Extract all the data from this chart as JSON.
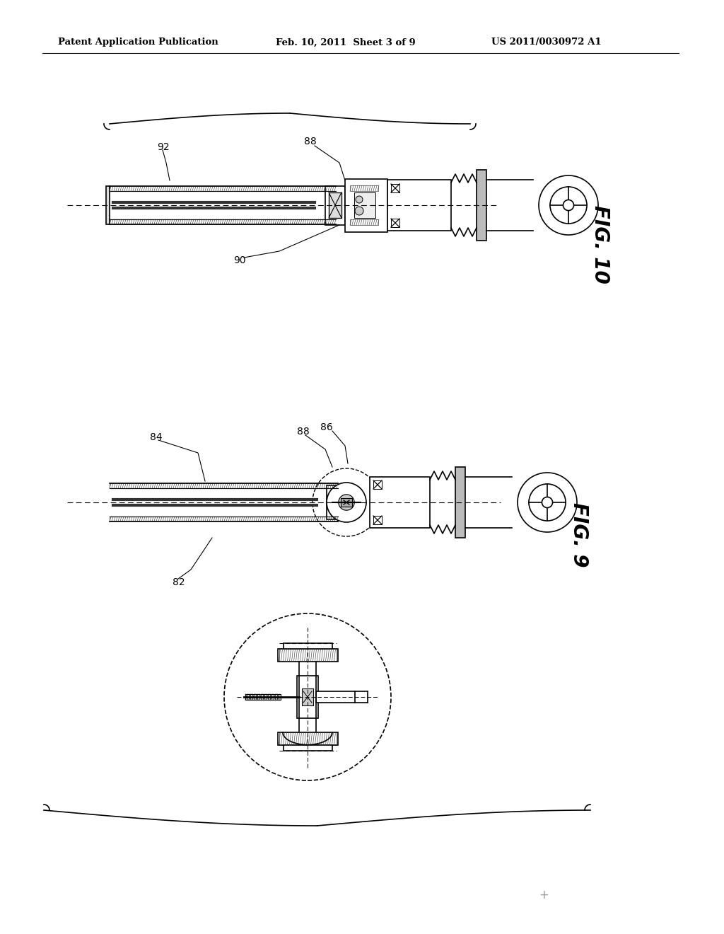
{
  "bg_color": "#ffffff",
  "header_left": "Patent Application Publication",
  "header_center": "Feb. 10, 2011  Sheet 3 of 9",
  "header_right": "US 2011/0030972 A1",
  "fig10_label": "FIG. 10",
  "fig9_label": "FIG. 9",
  "label_92": "92",
  "label_88_top": "88",
  "label_90": "90",
  "label_84": "84",
  "label_88_mid": "88",
  "label_86": "86",
  "label_82": "82",
  "line_color": "#000000",
  "lw_main": 1.2,
  "lw_thick": 2.0,
  "lw_thin": 0.7
}
